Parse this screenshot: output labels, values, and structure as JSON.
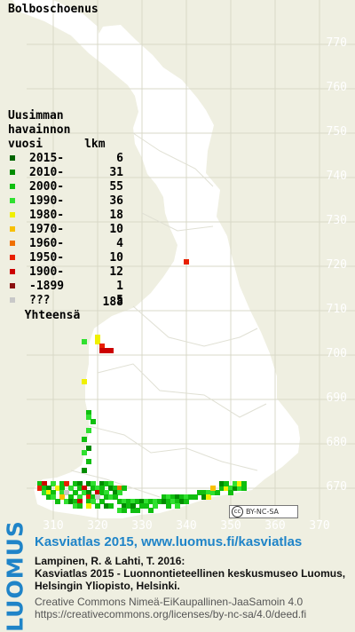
{
  "title": "Bolboschoenus",
  "legend_header": [
    "Uusimman",
    "havainnon",
    "vuosi      lkm"
  ],
  "legend": [
    {
      "label": "2015-",
      "count": "6",
      "color": "#006400"
    },
    {
      "label": "2010-",
      "count": "31",
      "color": "#008c00"
    },
    {
      "label": "2000-",
      "count": "55",
      "color": "#10bf10"
    },
    {
      "label": "1990-",
      "count": "36",
      "color": "#30e030"
    },
    {
      "label": "1980-",
      "count": "18",
      "color": "#f0f000"
    },
    {
      "label": "1970-",
      "count": "10",
      "color": "#f8c000"
    },
    {
      "label": "1960-",
      "count": "4",
      "color": "#f07000"
    },
    {
      "label": "1950-",
      "count": "10",
      "color": "#e82000"
    },
    {
      "label": "1900-",
      "count": "12",
      "color": "#cc0000"
    },
    {
      "label": "-1899",
      "count": "1",
      "color": "#8b1010"
    },
    {
      "label": "???",
      "count": "5",
      "color": "#c8c8c8"
    }
  ],
  "total": {
    "label": "Yhteensä",
    "count": "188"
  },
  "y_axis_labels": [
    "770",
    "760",
    "750",
    "740",
    "730",
    "720",
    "710",
    "700",
    "690",
    "680",
    "670"
  ],
  "x_axis_labels": [
    "310",
    "320",
    "330",
    "340",
    "350",
    "360",
    "370"
  ],
  "cc_badge": "BY-NC-SA",
  "footer": {
    "logo": "LUOMUS",
    "link": "Kasviatlas 2015, www.luomus.fi/kasviatlas",
    "citation": "Lampinen, R. & Lahti, T. 2016:\nKasviatlas 2015 - Luonnontieteellinen keskusmuseo Luomus,\nHelsingin Yliopisto, Helsinki.",
    "license": "Creative Commons Nimeä-EiKaupallinen-JaaSamoin 4.0\nhttps://creativecommons.org/licenses/by-nc-sa/4.0/deed.fi"
  },
  "colors": {
    "background": "#efefe1",
    "land": "#ffffff",
    "grid": "#d8d8c8",
    "accent": "#1f84c8"
  },
  "records": [
    {
      "x": 340,
      "y": 721,
      "c": 7
    },
    {
      "x": 320,
      "y": 704,
      "c": 4
    },
    {
      "x": 320,
      "y": 703,
      "c": 4
    },
    {
      "x": 321,
      "y": 702,
      "c": 7
    },
    {
      "x": 322,
      "y": 701,
      "c": 8
    },
    {
      "x": 323,
      "y": 701,
      "c": 8
    },
    {
      "x": 321,
      "y": 701,
      "c": 8
    },
    {
      "x": 317,
      "y": 703,
      "c": 3
    },
    {
      "x": 317,
      "y": 694,
      "c": 4
    },
    {
      "x": 318,
      "y": 687,
      "c": 2
    },
    {
      "x": 318,
      "y": 686,
      "c": 3
    },
    {
      "x": 319,
      "y": 685,
      "c": 2
    },
    {
      "x": 318,
      "y": 683,
      "c": 3
    },
    {
      "x": 317,
      "y": 681,
      "c": 2
    },
    {
      "x": 318,
      "y": 679,
      "c": 1
    },
    {
      "x": 317,
      "y": 678,
      "c": 3
    },
    {
      "x": 318,
      "y": 676,
      "c": 2
    },
    {
      "x": 317,
      "y": 674,
      "c": 1
    },
    {
      "x": 307,
      "y": 671,
      "c": 2
    },
    {
      "x": 308,
      "y": 671,
      "c": 8
    },
    {
      "x": 310,
      "y": 671,
      "c": 3
    },
    {
      "x": 312,
      "y": 671,
      "c": 2
    },
    {
      "x": 313,
      "y": 671,
      "c": 7
    },
    {
      "x": 315,
      "y": 671,
      "c": 2
    },
    {
      "x": 316,
      "y": 671,
      "c": 1
    },
    {
      "x": 318,
      "y": 671,
      "c": 1
    },
    {
      "x": 319,
      "y": 671,
      "c": 3
    },
    {
      "x": 321,
      "y": 671,
      "c": 1
    },
    {
      "x": 322,
      "y": 671,
      "c": 2
    },
    {
      "x": 323,
      "y": 671,
      "c": 3
    },
    {
      "x": 307,
      "y": 670,
      "c": 7
    },
    {
      "x": 308,
      "y": 670,
      "c": 2
    },
    {
      "x": 309,
      "y": 670,
      "c": 1
    },
    {
      "x": 311,
      "y": 670,
      "c": 4
    },
    {
      "x": 312,
      "y": 670,
      "c": 2
    },
    {
      "x": 314,
      "y": 670,
      "c": 3
    },
    {
      "x": 316,
      "y": 670,
      "c": 2
    },
    {
      "x": 317,
      "y": 670,
      "c": 8
    },
    {
      "x": 319,
      "y": 670,
      "c": 2
    },
    {
      "x": 320,
      "y": 670,
      "c": 3
    },
    {
      "x": 321,
      "y": 670,
      "c": 2
    },
    {
      "x": 323,
      "y": 670,
      "c": 1
    },
    {
      "x": 324,
      "y": 670,
      "c": 2
    },
    {
      "x": 325,
      "y": 670,
      "c": 6
    },
    {
      "x": 326,
      "y": 670,
      "c": 2
    },
    {
      "x": 308,
      "y": 669,
      "c": 3
    },
    {
      "x": 309,
      "y": 669,
      "c": 4
    },
    {
      "x": 310,
      "y": 669,
      "c": 2
    },
    {
      "x": 312,
      "y": 669,
      "c": 3
    },
    {
      "x": 313,
      "y": 669,
      "c": 10
    },
    {
      "x": 315,
      "y": 669,
      "c": 2
    },
    {
      "x": 317,
      "y": 669,
      "c": 3
    },
    {
      "x": 318,
      "y": 669,
      "c": 1
    },
    {
      "x": 320,
      "y": 669,
      "c": 8
    },
    {
      "x": 321,
      "y": 669,
      "c": 2
    },
    {
      "x": 322,
      "y": 669,
      "c": 3
    },
    {
      "x": 324,
      "y": 669,
      "c": 1
    },
    {
      "x": 325,
      "y": 669,
      "c": 3
    },
    {
      "x": 309,
      "y": 668,
      "c": 2
    },
    {
      "x": 310,
      "y": 668,
      "c": 3
    },
    {
      "x": 312,
      "y": 668,
      "c": 5
    },
    {
      "x": 314,
      "y": 668,
      "c": 2
    },
    {
      "x": 316,
      "y": 668,
      "c": 3
    },
    {
      "x": 318,
      "y": 668,
      "c": 7
    },
    {
      "x": 319,
      "y": 668,
      "c": 2
    },
    {
      "x": 320,
      "y": 668,
      "c": 10
    },
    {
      "x": 322,
      "y": 668,
      "c": 2
    },
    {
      "x": 323,
      "y": 668,
      "c": 3
    },
    {
      "x": 324,
      "y": 668,
      "c": 2
    },
    {
      "x": 311,
      "y": 667,
      "c": 2
    },
    {
      "x": 313,
      "y": 667,
      "c": 3
    },
    {
      "x": 314,
      "y": 667,
      "c": 1
    },
    {
      "x": 315,
      "y": 667,
      "c": 2
    },
    {
      "x": 316,
      "y": 667,
      "c": 8
    },
    {
      "x": 318,
      "y": 667,
      "c": 2
    },
    {
      "x": 319,
      "y": 667,
      "c": 3
    },
    {
      "x": 321,
      "y": 667,
      "c": 2
    },
    {
      "x": 315,
      "y": 666,
      "c": 3
    },
    {
      "x": 316,
      "y": 666,
      "c": 2
    },
    {
      "x": 318,
      "y": 666,
      "c": 4
    },
    {
      "x": 320,
      "y": 666,
      "c": 2
    },
    {
      "x": 322,
      "y": 666,
      "c": 1
    },
    {
      "x": 323,
      "y": 666,
      "c": 2
    },
    {
      "x": 325,
      "y": 667,
      "c": 2
    },
    {
      "x": 326,
      "y": 667,
      "c": 3
    },
    {
      "x": 326,
      "y": 666,
      "c": 1
    },
    {
      "x": 327,
      "y": 666,
      "c": 2
    },
    {
      "x": 325,
      "y": 665,
      "c": 3
    },
    {
      "x": 326,
      "y": 665,
      "c": 2
    },
    {
      "x": 328,
      "y": 665,
      "c": 2
    },
    {
      "x": 327,
      "y": 667,
      "c": 2
    },
    {
      "x": 328,
      "y": 667,
      "c": 3
    },
    {
      "x": 329,
      "y": 667,
      "c": 2
    },
    {
      "x": 330,
      "y": 667,
      "c": 1
    },
    {
      "x": 331,
      "y": 667,
      "c": 3
    },
    {
      "x": 332,
      "y": 667,
      "c": 2
    },
    {
      "x": 333,
      "y": 667,
      "c": 3
    },
    {
      "x": 334,
      "y": 667,
      "c": 2
    },
    {
      "x": 328,
      "y": 666,
      "c": 1
    },
    {
      "x": 330,
      "y": 666,
      "c": 2
    },
    {
      "x": 331,
      "y": 666,
      "c": 2
    },
    {
      "x": 333,
      "y": 666,
      "c": 3
    },
    {
      "x": 329,
      "y": 665,
      "c": 2
    },
    {
      "x": 332,
      "y": 665,
      "c": 2
    },
    {
      "x": 335,
      "y": 668,
      "c": 2
    },
    {
      "x": 336,
      "y": 668,
      "c": 3
    },
    {
      "x": 337,
      "y": 668,
      "c": 2
    },
    {
      "x": 338,
      "y": 668,
      "c": 1
    },
    {
      "x": 339,
      "y": 668,
      "c": 2
    },
    {
      "x": 340,
      "y": 668,
      "c": 3
    },
    {
      "x": 341,
      "y": 668,
      "c": 2
    },
    {
      "x": 342,
      "y": 668,
      "c": 2
    },
    {
      "x": 335,
      "y": 667,
      "c": 1
    },
    {
      "x": 336,
      "y": 667,
      "c": 2
    },
    {
      "x": 337,
      "y": 667,
      "c": 3
    },
    {
      "x": 338,
      "y": 667,
      "c": 2
    },
    {
      "x": 339,
      "y": 667,
      "c": 1
    },
    {
      "x": 340,
      "y": 667,
      "c": 2
    },
    {
      "x": 336,
      "y": 666,
      "c": 2
    },
    {
      "x": 338,
      "y": 666,
      "c": 3
    },
    {
      "x": 343,
      "y": 669,
      "c": 2
    },
    {
      "x": 344,
      "y": 669,
      "c": 2
    },
    {
      "x": 345,
      "y": 669,
      "c": 3
    },
    {
      "x": 344,
      "y": 668,
      "c": 1
    },
    {
      "x": 345,
      "y": 668,
      "c": 4
    },
    {
      "x": 346,
      "y": 669,
      "c": 3
    },
    {
      "x": 347,
      "y": 669,
      "c": 2
    },
    {
      "x": 346,
      "y": 670,
      "c": 5
    },
    {
      "x": 348,
      "y": 670,
      "c": 2
    },
    {
      "x": 349,
      "y": 670,
      "c": 4
    },
    {
      "x": 350,
      "y": 670,
      "c": 3
    },
    {
      "x": 351,
      "y": 670,
      "c": 1
    },
    {
      "x": 352,
      "y": 670,
      "c": 3
    },
    {
      "x": 348,
      "y": 671,
      "c": 1
    },
    {
      "x": 349,
      "y": 671,
      "c": 2
    },
    {
      "x": 351,
      "y": 671,
      "c": 3
    },
    {
      "x": 352,
      "y": 671,
      "c": 4
    },
    {
      "x": 353,
      "y": 671,
      "c": 2
    },
    {
      "x": 350,
      "y": 669,
      "c": 2
    },
    {
      "x": 353,
      "y": 670,
      "c": 2
    }
  ]
}
